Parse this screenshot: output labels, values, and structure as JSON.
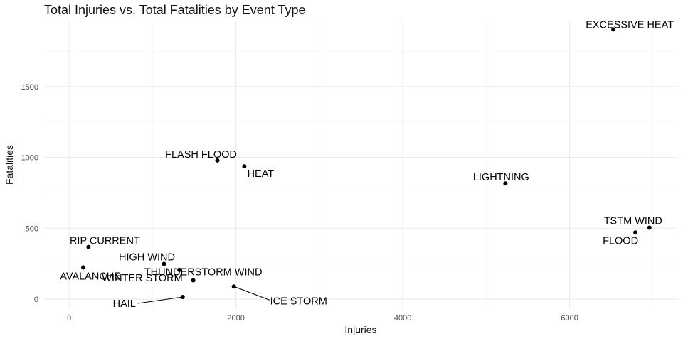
{
  "chart_data": {
    "type": "scatter",
    "title": "Total Injuries vs. Total Fatalities by Event Type",
    "xlabel": "Injuries",
    "ylabel": "Fatalities",
    "xlim": [
      -300,
      7300
    ],
    "ylim": [
      -70,
      1960
    ],
    "x_ticks": [
      0,
      2000,
      4000,
      6000
    ],
    "y_ticks": [
      0,
      500,
      1000,
      1500
    ],
    "x_minor_ticks": [
      1000,
      3000,
      5000,
      7000
    ],
    "y_minor_ticks": [
      250,
      750,
      1250,
      1750
    ],
    "grid": true,
    "legend": "none",
    "point_color": "#000000",
    "points": [
      {
        "label": "EXCESSIVE HEAT",
        "x": 6525,
        "y": 1903
      },
      {
        "label": "FLASH FLOOD",
        "x": 1777,
        "y": 978
      },
      {
        "label": "HEAT",
        "x": 2100,
        "y": 937
      },
      {
        "label": "LIGHTNING",
        "x": 5230,
        "y": 816
      },
      {
        "label": "TSTM WIND",
        "x": 6957,
        "y": 504
      },
      {
        "label": "FLOOD",
        "x": 6789,
        "y": 470
      },
      {
        "label": "RIP CURRENT",
        "x": 232,
        "y": 368
      },
      {
        "label": "HIGH WIND",
        "x": 1137,
        "y": 248
      },
      {
        "label": "AVALANCHE",
        "x": 170,
        "y": 224
      },
      {
        "label": "WINTER STORM",
        "x": 1321,
        "y": 206
      },
      {
        "label": "THUNDERSTORM WIND",
        "x": 1488,
        "y": 133
      },
      {
        "label": "ICE STORM",
        "x": 1975,
        "y": 89
      },
      {
        "label": "HAIL",
        "x": 1361,
        "y": 15
      }
    ]
  }
}
